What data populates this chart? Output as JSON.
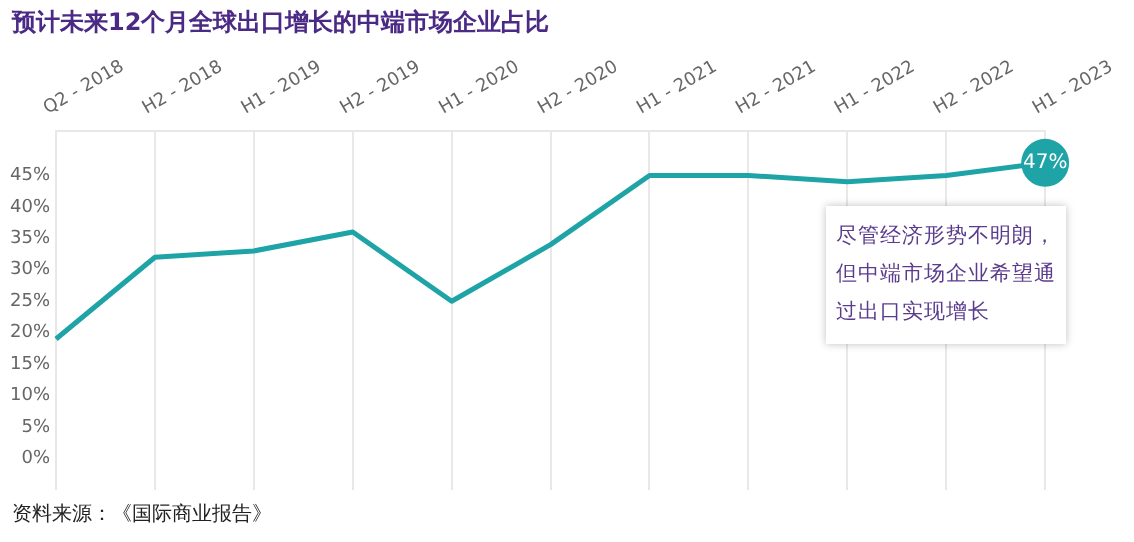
{
  "chart_data": {
    "type": "line",
    "title": "预计未来12个月全球出口增长的中端市场企业占比",
    "categories": [
      "Q2 - 2018",
      "H2 - 2018",
      "H1 - 2019",
      "H2 - 2019",
      "H1 - 2020",
      "H2 - 2020",
      "H1 - 2021",
      "H2 - 2021",
      "H1 - 2022",
      "H2 - 2022",
      "H1 - 2023"
    ],
    "series": [
      {
        "color": "#1ea3a6",
        "values": [
          19,
          32,
          33,
          36,
          25,
          34,
          45,
          45,
          44,
          45,
          47
        ],
        "value_labels": [
          null,
          null,
          null,
          null,
          null,
          null,
          null,
          null,
          null,
          null,
          "47%"
        ]
      }
    ],
    "ylim": [
      -5,
      52
    ],
    "yticks": [
      {
        "value": 0,
        "label": "0%"
      },
      {
        "value": 5,
        "label": "5%"
      },
      {
        "value": 10,
        "label": "10%"
      },
      {
        "value": 15,
        "label": "15%"
      },
      {
        "value": 20,
        "label": "20%"
      },
      {
        "value": 25,
        "label": "25%"
      },
      {
        "value": 30,
        "label": "30%"
      },
      {
        "value": 35,
        "label": "35%"
      },
      {
        "value": 40,
        "label": "40%"
      },
      {
        "value": 45,
        "label": "45%"
      }
    ],
    "grid": "x",
    "legend": false,
    "marker": "none",
    "line_style": "solid",
    "annotations": [
      "尽管经济形势不明朗，但中端市场企业希望通过出口实现增长",
      "资料来源：《国际商业报告》"
    ]
  }
}
